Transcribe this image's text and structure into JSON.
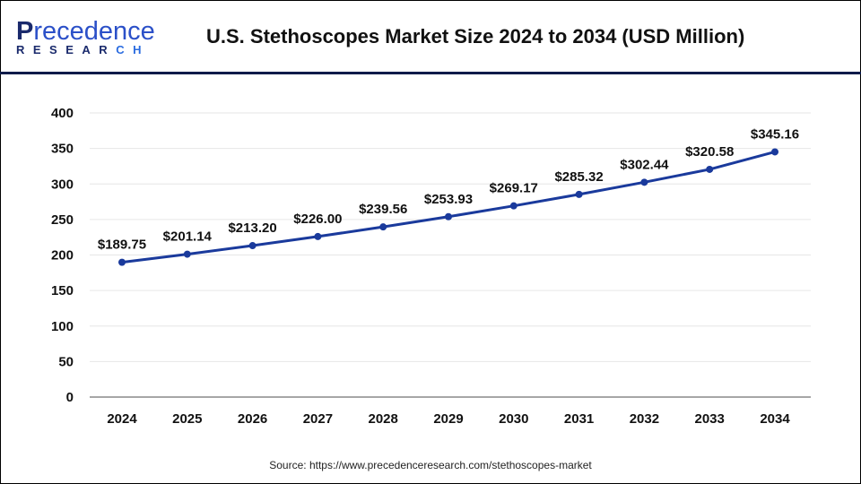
{
  "header": {
    "logo_text": "Precedence",
    "logo_subtext": "RESEARCH",
    "title": "U.S. Stethoscopes Market Size 2024 to 2034 (USD Million)"
  },
  "source": "Source: https://www.precedenceresearch.com/stethoscopes-market",
  "chart_data": {
    "type": "line",
    "title": "U.S. Stethoscopes Market Size 2024 to 2034 (USD Million)",
    "xlabel": "",
    "ylabel": "",
    "categories": [
      "2024",
      "2025",
      "2026",
      "2027",
      "2028",
      "2029",
      "2030",
      "2031",
      "2032",
      "2033",
      "2034"
    ],
    "values": [
      189.75,
      201.14,
      213.2,
      226.0,
      239.56,
      253.93,
      269.17,
      285.32,
      302.44,
      320.58,
      345.16
    ],
    "data_labels": [
      "$189.75",
      "$201.14",
      "$213.20",
      "$226.00",
      "$239.56",
      "$253.93",
      "$269.17",
      "$285.32",
      "$302.44",
      "$320.58",
      "$345.16"
    ],
    "yticks": [
      0,
      50,
      100,
      150,
      200,
      250,
      300,
      350,
      400
    ],
    "ylim": [
      0,
      400
    ],
    "grid": true,
    "legend": "none",
    "line_color": "#1a3a9c"
  }
}
